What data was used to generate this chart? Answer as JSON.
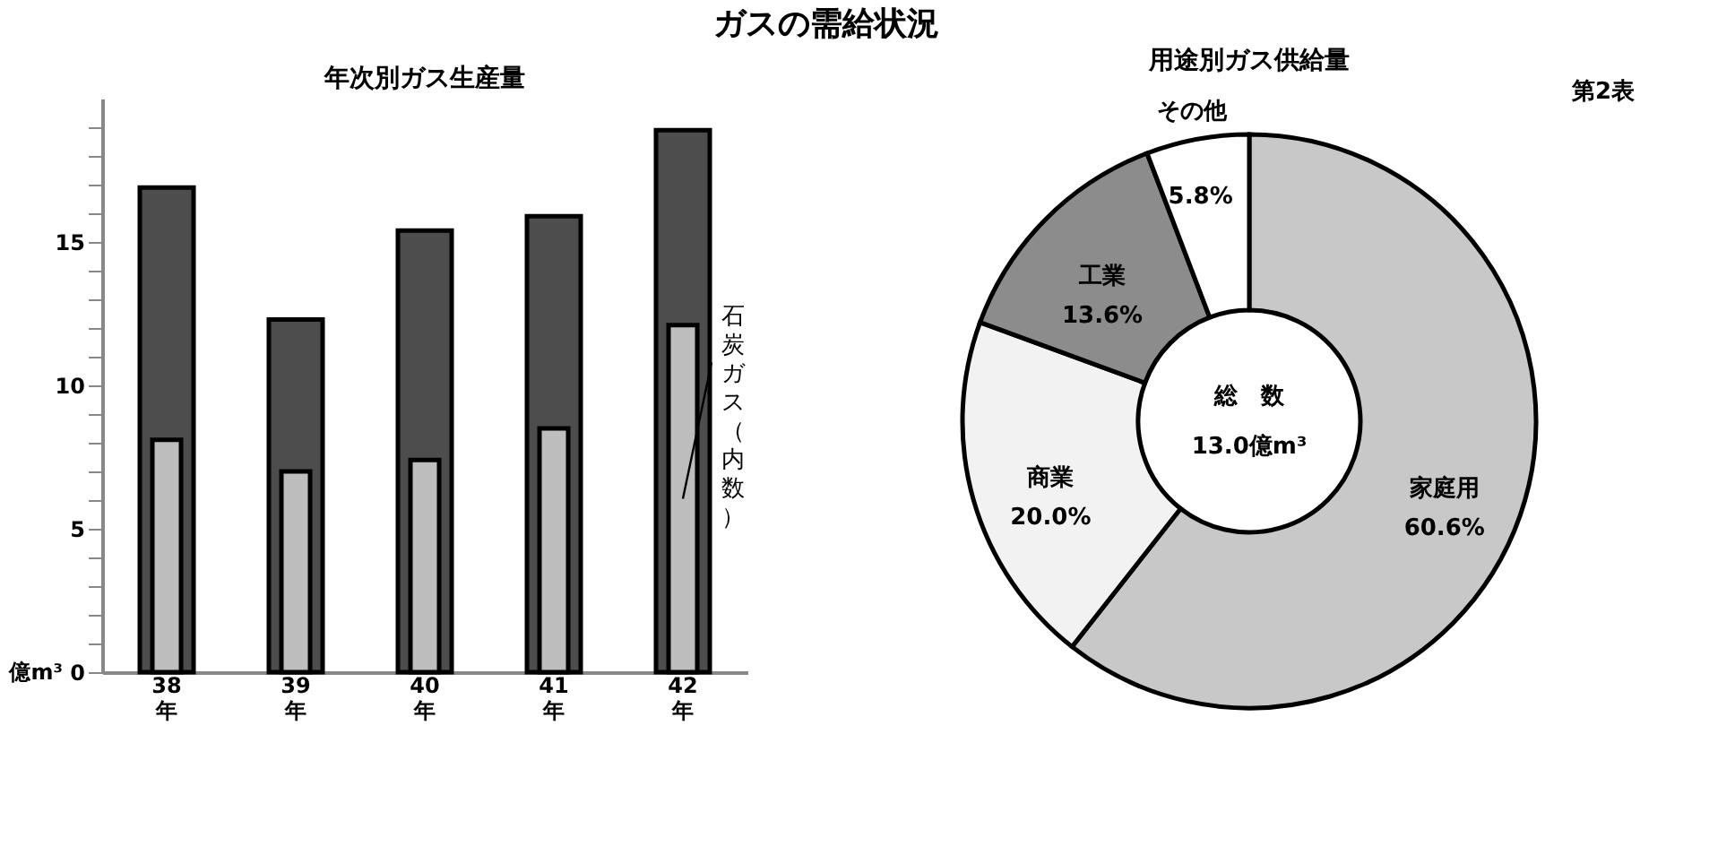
{
  "chart_data": [
    {
      "type": "bar",
      "title": "年次別ガス生産量",
      "ylabel": "億m³",
      "annotations": [
        "ガスの需給状況"
      ],
      "categories": [
        "38年",
        "39年",
        "40年",
        "41年",
        "42年"
      ],
      "series": [
        {
          "color": "#4d4d4d",
          "values": [
            16.9,
            12.3,
            15.4,
            15.9,
            18.9
          ]
        },
        {
          "name": "石炭ガス（内数）",
          "color": "#bdbdbd",
          "values": [
            8.1,
            7.0,
            7.4,
            8.5,
            12.1
          ]
        }
      ],
      "ylim": [
        0,
        20
      ],
      "yticks": [
        0,
        {
          "value": 1,
          "label": null
        },
        {
          "value": 2,
          "label": null
        },
        {
          "value": 3,
          "label": null
        },
        {
          "value": 4,
          "label": null
        },
        5,
        {
          "value": 6,
          "label": null
        },
        {
          "value": 7,
          "label": null
        },
        {
          "value": 8,
          "label": null
        },
        {
          "value": 9,
          "label": null
        },
        10,
        {
          "value": 11,
          "label": null
        },
        {
          "value": 12,
          "label": null
        },
        {
          "value": 13,
          "label": null
        },
        {
          "value": 14,
          "label": null
        },
        15,
        {
          "value": 16,
          "label": null
        },
        {
          "value": 17,
          "label": null
        },
        {
          "value": 18,
          "label": null
        },
        {
          "value": 19,
          "label": null
        }
      ],
      "grid": false,
      "legend": false
    },
    {
      "type": "donut",
      "title": "用途別ガス供給量",
      "annotations": [
        "総　数",
        "13.0億m³",
        "第2表"
      ],
      "categories": [
        "家庭用",
        "商業",
        "工業",
        "その他"
      ],
      "values": [
        60.6,
        20.0,
        13.6,
        5.8
      ],
      "value_labels": [
        "60.6%",
        "20.0%",
        "13.6%",
        "5.8%"
      ],
      "colors": [
        "#c8c8c8",
        "#f2f2f2",
        "#8c8c8c",
        "#ffffff"
      ],
      "legend": false
    }
  ]
}
